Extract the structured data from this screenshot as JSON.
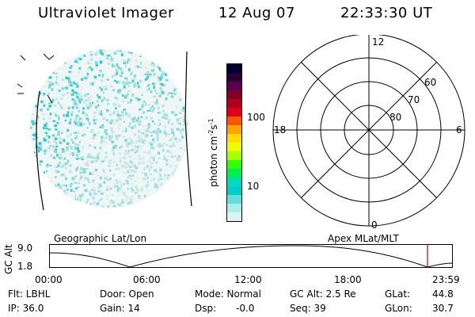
{
  "header": {
    "instrument": "Ultraviolet Imager",
    "date": "12 Aug 07",
    "time": "22:33:30 UT"
  },
  "colorbar": {
    "unit_label": "photon cm",
    "unit_sup1": "-2",
    "unit_s": "s",
    "unit_sup2": "-1",
    "ticks": [
      "100",
      "10"
    ],
    "colors": [
      "#000033",
      "#2a0033",
      "#5a004d",
      "#800026",
      "#b0001a",
      "#e0001a",
      "#ff5500",
      "#ffa500",
      "#ffdd00",
      "#eeff00",
      "#a8ff00",
      "#33ff00",
      "#00ee55",
      "#00ddbb",
      "#00cccc",
      "#66dddd",
      "#aaeeee",
      "#ddf3f3"
    ]
  },
  "polar_plot": {
    "mlt_labels": [
      "12",
      "18",
      "6",
      "0"
    ],
    "lat_labels": [
      "60",
      "70",
      "80"
    ]
  },
  "mid_labels": {
    "left": "Geographic Lat/Lon",
    "right": "Apex MLat/MLT"
  },
  "orbit_plot": {
    "axis_title": "GC Alt",
    "y_ticks": [
      "9.0",
      "1.8"
    ],
    "x_ticks": [
      "00:00",
      "06:00",
      "12:00",
      "18:00",
      "23:59"
    ]
  },
  "status": {
    "flt": "Flt: LBHL",
    "ip": "IP: 36.0",
    "door": "Door: Open",
    "gain": "Gain: 14",
    "mode": "Mode: Normal",
    "dsp_label": "Dsp:",
    "dsp_value": "-0.0",
    "gc_alt": "GC Alt: 2.5 Re",
    "seq": "Seq: 39",
    "glat_label": "GLat:",
    "glat_value": "44.8",
    "glon_label": "GLon:",
    "glon_value": "30.7"
  },
  "colors": {
    "cyan": "#22cccc",
    "marker": "#cc0000"
  }
}
